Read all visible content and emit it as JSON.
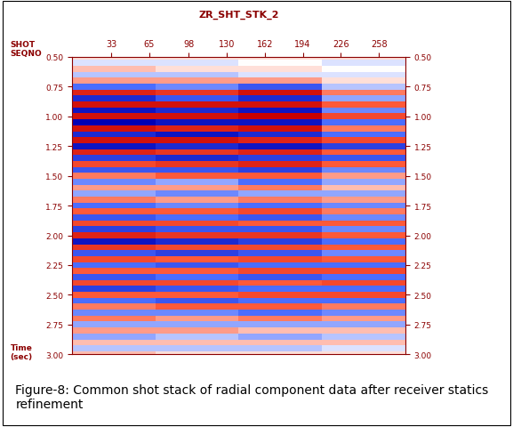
{
  "chart_data": {
    "type": "heatmap",
    "title": "ZR_SHT_STK_2",
    "x_label": "SHOT\nSEQNO",
    "y_label": "Time\n(sec)",
    "caption": "Figure-8: Common shot stack of radial component data after receiver statics refinement",
    "x": [
      35,
      105,
      175,
      245
    ],
    "y": [
      0.5,
      0.55,
      0.6,
      0.65,
      0.7,
      0.75,
      0.8,
      0.85,
      0.9,
      0.95,
      1.0,
      1.05,
      1.1,
      1.15,
      1.2,
      1.25,
      1.3,
      1.35,
      1.4,
      1.45,
      1.5,
      1.55,
      1.6,
      1.65,
      1.7,
      1.75,
      1.8,
      1.85,
      1.9,
      1.95,
      2.0,
      2.05,
      2.1,
      2.15,
      2.2,
      2.25,
      2.3,
      2.35,
      2.4,
      2.45,
      2.5,
      2.55,
      2.6,
      2.65,
      2.7,
      2.75,
      2.8,
      2.85,
      2.9,
      2.95,
      3.0
    ],
    "cells": [
      [
        0.1,
        0.1,
        0.1,
        0.1
      ],
      [
        -0.1,
        -0.1,
        0,
        -0.1
      ],
      [
        0.2,
        0.1,
        0.1,
        0
      ],
      [
        -0.2,
        -0.2,
        -0.1,
        -0.1
      ],
      [
        0.3,
        0.3,
        0.3,
        0.1
      ],
      [
        -0.5,
        -0.4,
        -0.6,
        -0.2
      ],
      [
        0.8,
        0.7,
        0.9,
        0.4
      ],
      [
        -0.8,
        -0.6,
        -0.8,
        -0.3
      ],
      [
        0.9,
        0.9,
        0.9,
        0.5
      ],
      [
        -0.9,
        -0.8,
        -0.9,
        -0.4
      ],
      [
        0.9,
        0.9,
        1.0,
        0.6
      ],
      [
        -1.0,
        -0.9,
        -0.9,
        -0.5
      ],
      [
        0.9,
        0.8,
        0.9,
        0.4
      ],
      [
        -0.8,
        -0.9,
        -0.8,
        -0.5
      ],
      [
        0.9,
        0.9,
        0.8,
        0.6
      ],
      [
        -0.9,
        -0.8,
        -0.9,
        -0.7
      ],
      [
        0.8,
        0.7,
        0.8,
        0.5
      ],
      [
        -0.7,
        -0.8,
        -0.7,
        -0.6
      ],
      [
        0.6,
        0.7,
        0.8,
        0.5
      ],
      [
        -0.6,
        -0.6,
        -0.7,
        -0.4
      ],
      [
        0.4,
        0.5,
        0.5,
        0.3
      ],
      [
        -0.4,
        -0.3,
        -0.5,
        -0.3
      ],
      [
        0.3,
        0.3,
        0.4,
        0.2
      ],
      [
        -0.3,
        -0.4,
        -0.3,
        -0.3
      ],
      [
        0.4,
        0.3,
        0.4,
        0.3
      ],
      [
        -0.5,
        -0.4,
        -0.5,
        -0.4
      ],
      [
        0.5,
        0.5,
        0.6,
        0.4
      ],
      [
        -0.6,
        -0.5,
        -0.6,
        -0.4
      ],
      [
        0.6,
        0.6,
        0.5,
        0.5
      ],
      [
        -0.7,
        -0.6,
        -0.6,
        -0.4
      ],
      [
        0.8,
        0.7,
        0.7,
        0.5
      ],
      [
        -0.9,
        -0.8,
        -0.7,
        -0.5
      ],
      [
        0.7,
        0.6,
        0.6,
        0.5
      ],
      [
        -0.6,
        -0.7,
        -0.6,
        -0.4
      ],
      [
        0.6,
        0.5,
        0.6,
        0.5
      ],
      [
        -0.5,
        -0.6,
        -0.5,
        -0.5
      ],
      [
        0.5,
        0.5,
        0.6,
        0.6
      ],
      [
        -0.6,
        -0.5,
        -0.6,
        -0.5
      ],
      [
        0.6,
        0.6,
        0.5,
        0.6
      ],
      [
        -0.7,
        -0.6,
        -0.5,
        -0.5
      ],
      [
        0.5,
        0.5,
        0.6,
        0.6
      ],
      [
        -0.5,
        -0.6,
        -0.5,
        -0.5
      ],
      [
        0.4,
        0.5,
        0.5,
        0.4
      ],
      [
        -0.4,
        -0.4,
        -0.5,
        -0.4
      ],
      [
        0.4,
        0.3,
        0.4,
        0.3
      ],
      [
        -0.3,
        -0.3,
        -0.3,
        -0.3
      ],
      [
        0.3,
        0.3,
        0.2,
        0.2
      ],
      [
        -0.3,
        -0.2,
        -0.3,
        -0.2
      ],
      [
        0.2,
        0.2,
        0.2,
        0.2
      ],
      [
        -0.2,
        -0.2,
        -0.2,
        -0.1
      ],
      [
        0.2,
        0.1,
        0.1,
        0.1
      ]
    ],
    "color_range": [
      -1,
      1
    ],
    "xlim": [
      0,
      280
    ],
    "xticks": [
      33,
      65,
      98,
      130,
      162,
      194,
      226,
      258
    ],
    "ylim": [
      3.0,
      0.5
    ],
    "yticks": [
      {
        "value": 0.5,
        "label": "0.50"
      },
      {
        "value": 0.75,
        "label": "0.75"
      },
      {
        "value": 1.0,
        "label": "1.00"
      },
      {
        "value": 1.25,
        "label": "1.25"
      },
      {
        "value": 1.5,
        "label": "1.50"
      },
      {
        "value": 1.75,
        "label": "1.75"
      },
      {
        "value": 2.0,
        "label": "2.00"
      },
      {
        "value": 2.25,
        "label": "2.25"
      },
      {
        "value": 2.5,
        "label": "2.50"
      },
      {
        "value": 2.75,
        "label": "2.75"
      },
      {
        "value": 3.0,
        "label": "3.00"
      }
    ]
  }
}
